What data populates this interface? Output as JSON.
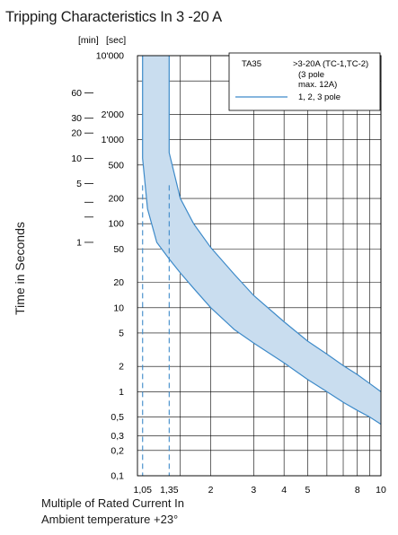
{
  "title": "Tripping Characteristics In 3 -20 A",
  "ylabel": "Time in Seconds",
  "xlabel_lines": [
    "Multiple of Rated Current In",
    "Ambient temperature +23°"
  ],
  "y_unit_min": "[min]",
  "y_unit_sec": "[sec]",
  "legend": {
    "model": "TA35",
    "rating_lines": [
      ">3-20A (TC-1,TC-2)",
      "(3 pole",
      "max. 12A)"
    ],
    "series_label": "1, 2, 3 pole"
  },
  "colors": {
    "band_fill": "#c9ddef",
    "band_line": "#3d8ac9",
    "grid": "#000000"
  },
  "chart_data": {
    "type": "area",
    "title": "Tripping Characteristics In 3 -20 A",
    "xlabel": "Multiple of Rated Current In",
    "ylabel": "Time in Seconds",
    "x_scale": "log",
    "y_scale": "log",
    "xlim": [
      1,
      10
    ],
    "ylim": [
      0.1,
      10000
    ],
    "grid": true,
    "legend_position": "top-right",
    "x_ticks": [
      {
        "value": 1.05,
        "label": "1,05"
      },
      {
        "value": 1.35,
        "label": "1,35"
      },
      {
        "value": 2,
        "label": "2"
      },
      {
        "value": 3,
        "label": "3"
      },
      {
        "value": 4,
        "label": "4"
      },
      {
        "value": 5,
        "label": "5"
      },
      {
        "value": 8,
        "label": "8"
      },
      {
        "value": 10,
        "label": "10"
      }
    ],
    "y_ticks_sec": [
      {
        "value": 10000,
        "label": "10'000"
      },
      {
        "value": 2000,
        "label": "2'000"
      },
      {
        "value": 1000,
        "label": "1'000"
      },
      {
        "value": 500,
        "label": "500"
      },
      {
        "value": 200,
        "label": "200"
      },
      {
        "value": 100,
        "label": "100"
      },
      {
        "value": 50,
        "label": "50"
      },
      {
        "value": 20,
        "label": "20"
      },
      {
        "value": 10,
        "label": "10"
      },
      {
        "value": 5,
        "label": "5"
      },
      {
        "value": 2,
        "label": "2"
      },
      {
        "value": 1,
        "label": "1"
      },
      {
        "value": 0.5,
        "label": "0,5"
      },
      {
        "value": 0.3,
        "label": "0,3"
      },
      {
        "value": 0.2,
        "label": "0,2"
      },
      {
        "value": 0.1,
        "label": "0,1"
      }
    ],
    "y_ticks_min": [
      {
        "value": 3600,
        "label": "60"
      },
      {
        "value": 1800,
        "label": "30"
      },
      {
        "value": 1200,
        "label": "20"
      },
      {
        "value": 600,
        "label": "10"
      },
      {
        "value": 300,
        "label": "5"
      },
      {
        "value": 180,
        "label": ""
      },
      {
        "value": 120,
        "label": ""
      },
      {
        "value": 60,
        "label": "1"
      }
    ],
    "vertical_grid": [
      1.05,
      1.35,
      1.5,
      2,
      3,
      4,
      5,
      6,
      7,
      8,
      9,
      10
    ],
    "horizontal_grid": [
      10000,
      5000,
      2000,
      1000,
      500,
      200,
      100,
      50,
      20,
      10,
      5,
      2,
      1,
      0.5,
      0.3,
      0.2,
      0.1
    ],
    "dashed_markers": [
      1.05,
      1.35
    ],
    "series": [
      {
        "name": "1, 2, 3 pole",
        "band_lower": [
          [
            1.05,
            10000
          ],
          [
            1.05,
            600
          ],
          [
            1.1,
            150
          ],
          [
            1.2,
            60
          ],
          [
            1.35,
            38
          ],
          [
            1.5,
            26
          ],
          [
            1.7,
            17
          ],
          [
            2,
            10
          ],
          [
            2.5,
            5.5
          ],
          [
            3,
            3.8
          ],
          [
            4,
            2.2
          ],
          [
            5,
            1.4
          ],
          [
            6,
            1.0
          ],
          [
            7,
            0.75
          ],
          [
            8,
            0.6
          ],
          [
            9,
            0.5
          ],
          [
            10,
            0.41
          ]
        ],
        "band_upper": [
          [
            1.35,
            10000
          ],
          [
            1.35,
            700
          ],
          [
            1.5,
            200
          ],
          [
            1.7,
            100
          ],
          [
            2,
            52
          ],
          [
            2.5,
            25
          ],
          [
            3,
            14
          ],
          [
            4,
            6.8
          ],
          [
            5,
            4
          ],
          [
            6,
            2.8
          ],
          [
            7,
            2.05
          ],
          [
            8,
            1.6
          ],
          [
            9,
            1.25
          ],
          [
            10,
            1.0
          ]
        ]
      }
    ]
  }
}
